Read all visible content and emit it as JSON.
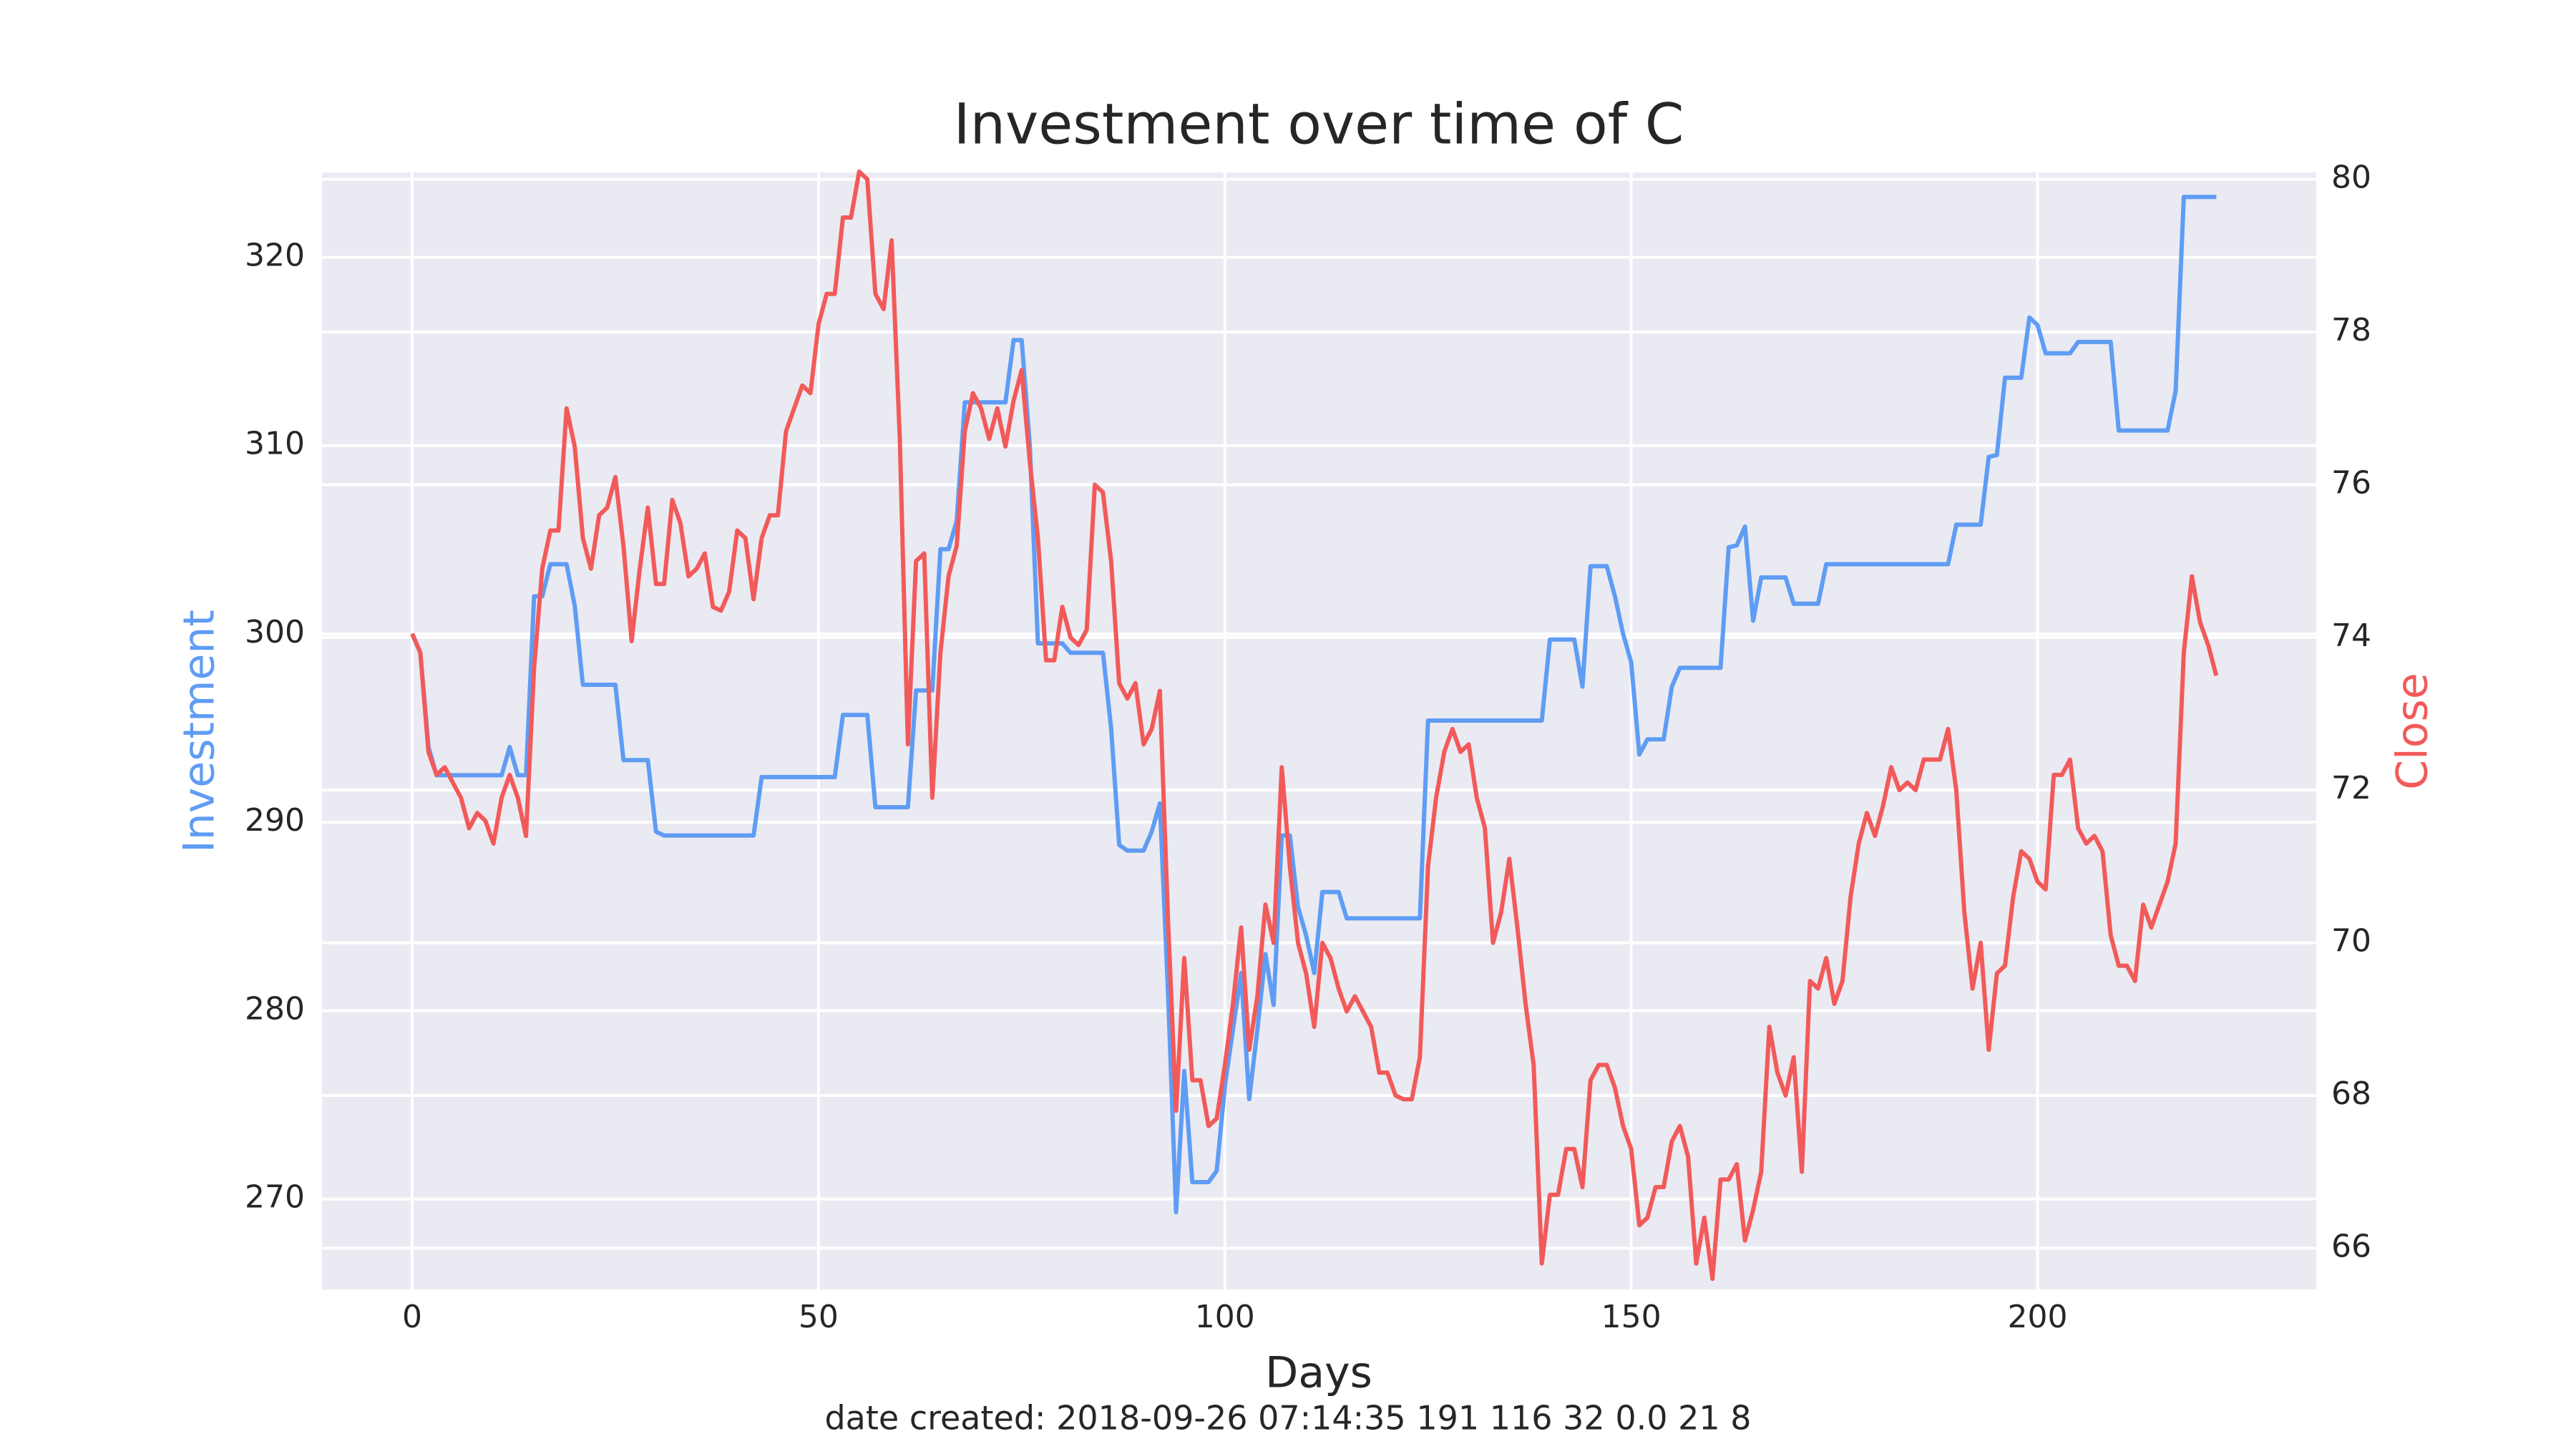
{
  "chart_data": {
    "type": "line",
    "title": "Investment over time of C",
    "xlabel": "Days",
    "ylabel": "Investment",
    "y2label": "Close",
    "caption": "date created: 2018-09-26 07:14:35 191 116 32 0.0 21 8",
    "grid": true,
    "xlim": [
      -11.1,
      234.3
    ],
    "xticks": [
      0,
      50,
      100,
      150,
      200
    ],
    "ylim": [
      265.2,
      324.5
    ],
    "yticks": [
      270,
      280,
      290,
      300,
      310,
      320
    ],
    "y2lim": [
      65.46,
      80.09
    ],
    "y2ticks": [
      66,
      68,
      70,
      72,
      74,
      76,
      78,
      80
    ],
    "x": [
      0,
      1,
      2,
      3,
      4,
      5,
      6,
      7,
      8,
      9,
      10,
      11,
      12,
      13,
      14,
      15,
      16,
      17,
      18,
      19,
      20,
      21,
      22,
      23,
      24,
      25,
      26,
      27,
      28,
      29,
      30,
      31,
      32,
      33,
      34,
      35,
      36,
      37,
      38,
      39,
      40,
      41,
      42,
      43,
      44,
      45,
      46,
      47,
      48,
      49,
      50,
      51,
      52,
      53,
      54,
      55,
      56,
      57,
      58,
      59,
      60,
      61,
      62,
      63,
      64,
      65,
      66,
      67,
      68,
      69,
      70,
      71,
      72,
      73,
      74,
      75,
      76,
      77,
      78,
      79,
      80,
      81,
      82,
      83,
      84,
      85,
      86,
      87,
      88,
      89,
      90,
      91,
      92,
      93,
      94,
      95,
      96,
      97,
      98,
      99,
      100,
      101,
      102,
      103,
      104,
      105,
      106,
      107,
      108,
      109,
      110,
      111,
      112,
      113,
      114,
      115,
      116,
      117,
      118,
      119,
      120,
      121,
      122,
      123,
      124,
      125,
      126,
      127,
      128,
      129,
      130,
      131,
      132,
      133,
      134,
      135,
      136,
      137,
      138,
      139,
      140,
      141,
      142,
      143,
      144,
      145,
      146,
      147,
      148,
      149,
      150,
      151,
      152,
      153,
      154,
      155,
      156,
      157,
      158,
      159,
      160,
      161,
      162,
      163,
      164,
      165,
      166,
      167,
      168,
      169,
      170,
      171,
      172,
      173,
      174,
      175,
      176,
      177,
      178,
      179,
      180,
      181,
      182,
      183,
      184,
      185,
      186,
      187,
      188,
      189,
      190,
      191,
      192,
      193,
      194,
      195,
      196,
      197,
      198,
      199,
      200,
      201,
      202,
      203,
      204,
      205,
      206,
      207,
      208,
      209,
      210,
      211,
      212,
      213,
      214,
      215,
      216,
      217,
      218,
      219,
      220,
      221,
      222
    ],
    "series": [
      {
        "name": "Investment",
        "color": "#5f9cf4",
        "axis": "y",
        "values": [
          300,
          299,
          294,
          292.5,
          292.5,
          292.5,
          292.5,
          292.5,
          292.5,
          292.5,
          292.5,
          292.5,
          294,
          292.5,
          292.5,
          302,
          302,
          303.7,
          303.7,
          303.7,
          301.5,
          297.3,
          297.3,
          297.3,
          297.3,
          297.3,
          293.3,
          293.3,
          293.3,
          293.3,
          289.5,
          289.3,
          289.3,
          289.3,
          289.3,
          289.3,
          289.3,
          289.3,
          289.3,
          289.3,
          289.3,
          289.3,
          289.3,
          292.4,
          292.4,
          292.4,
          292.4,
          292.4,
          292.4,
          292.4,
          292.4,
          292.4,
          292.4,
          295.7,
          295.7,
          295.7,
          295.7,
          290.8,
          290.8,
          290.8,
          290.8,
          290.8,
          297,
          297,
          297,
          304.5,
          304.5,
          306,
          312.3,
          312.3,
          312.3,
          312.3,
          312.3,
          312.3,
          315.6,
          315.6,
          310,
          299.5,
          299.5,
          299.5,
          299.5,
          299,
          299,
          299,
          299,
          299,
          295,
          288.8,
          288.5,
          288.5,
          288.5,
          289.5,
          291,
          281,
          269.3,
          276.8,
          270.9,
          270.9,
          270.9,
          271.5,
          276,
          279,
          282,
          275.3,
          279,
          283,
          280.3,
          289.3,
          289.3,
          285.5,
          284,
          282,
          286.3,
          286.3,
          286.3,
          284.9,
          284.9,
          284.9,
          284.9,
          284.9,
          284.9,
          284.9,
          284.9,
          284.9,
          284.9,
          295.4,
          295.4,
          295.4,
          295.4,
          295.4,
          295.4,
          295.4,
          295.4,
          295.4,
          295.4,
          295.4,
          295.4,
          295.4,
          295.4,
          295.4,
          299.7,
          299.7,
          299.7,
          299.7,
          297.2,
          303.6,
          303.6,
          303.6,
          302,
          300,
          298.5,
          293.6,
          294.4,
          294.4,
          294.4,
          297.2,
          298.2,
          298.2,
          298.2,
          298.2,
          298.2,
          298.2,
          304.6,
          304.7,
          305.7,
          300.7,
          303,
          303,
          303,
          303,
          301.6,
          301.6,
          301.6,
          301.6,
          303.7,
          303.7,
          303.7,
          303.7,
          303.7,
          303.7,
          303.7,
          303.7,
          303.7,
          303.7,
          303.7,
          303.7,
          303.7,
          303.7,
          303.7,
          303.7,
          305.8,
          305.8,
          305.8,
          305.8,
          309.4,
          309.5,
          313.6,
          313.6,
          313.6,
          316.8,
          316.4,
          314.9,
          314.9,
          314.9,
          314.9,
          315.5,
          315.5,
          315.5,
          315.5,
          315.5,
          310.8,
          310.8,
          310.8,
          310.8,
          310.8,
          310.8,
          310.8,
          312.9,
          323.2,
          323.2,
          323.2,
          323.2,
          323.2
        ]
      },
      {
        "name": "Close",
        "color": "#f25a5a",
        "axis": "y2",
        "values": [
          74.05,
          73.8,
          72.5,
          72.2,
          72.3,
          72.1,
          71.9,
          71.5,
          71.7,
          71.6,
          71.3,
          71.9,
          72.2,
          71.9,
          71.4,
          73.6,
          74.9,
          75.4,
          75.4,
          77.0,
          76.5,
          75.3,
          74.9,
          75.6,
          75.7,
          76.1,
          75.2,
          73.95,
          74.9,
          75.7,
          74.7,
          74.7,
          75.8,
          75.5,
          74.8,
          74.9,
          75.1,
          74.4,
          74.35,
          74.6,
          75.4,
          75.3,
          74.5,
          75.3,
          75.6,
          75.6,
          76.7,
          77.0,
          77.3,
          77.2,
          78.1,
          78.5,
          78.5,
          79.5,
          79.5,
          80.1,
          80.0,
          78.5,
          78.3,
          79.2,
          76.6,
          72.6,
          75.0,
          75.1,
          71.9,
          73.8,
          74.8,
          75.2,
          76.7,
          77.2,
          77.0,
          76.6,
          77.0,
          76.5,
          77.1,
          77.5,
          76.3,
          75.3,
          73.7,
          73.7,
          74.4,
          74.0,
          73.9,
          74.1,
          76.0,
          75.9,
          75.0,
          73.4,
          73.2,
          73.4,
          72.6,
          72.8,
          73.3,
          70.3,
          67.8,
          69.8,
          68.2,
          68.2,
          67.6,
          67.7,
          68.4,
          69.2,
          70.2,
          68.6,
          69.3,
          70.5,
          70.0,
          72.3,
          71.0,
          70.0,
          69.6,
          68.9,
          70.0,
          69.8,
          69.4,
          69.1,
          69.3,
          69.1,
          68.9,
          68.3,
          68.3,
          68.0,
          67.95,
          67.95,
          68.5,
          71.0,
          71.9,
          72.5,
          72.8,
          72.5,
          72.6,
          71.9,
          71.5,
          70.0,
          70.4,
          71.1,
          70.2,
          69.2,
          68.4,
          65.8,
          66.7,
          66.7,
          67.3,
          67.3,
          66.8,
          68.2,
          68.4,
          68.4,
          68.1,
          67.6,
          67.3,
          66.3,
          66.4,
          66.8,
          66.8,
          67.4,
          67.6,
          67.2,
          65.8,
          66.4,
          65.6,
          66.9,
          66.9,
          67.1,
          66.1,
          66.5,
          67.0,
          68.9,
          68.3,
          68.0,
          68.5,
          67.0,
          69.5,
          69.4,
          69.8,
          69.2,
          69.5,
          70.6,
          71.3,
          71.7,
          71.4,
          71.8,
          72.3,
          72.0,
          72.1,
          72.0,
          72.4,
          72.4,
          72.4,
          72.8,
          72.0,
          70.4,
          69.4,
          70.0,
          68.6,
          69.6,
          69.7,
          70.6,
          71.2,
          71.1,
          70.8,
          70.7,
          72.2,
          72.2,
          72.4,
          71.5,
          71.3,
          71.4,
          71.2,
          70.1,
          69.7,
          69.7,
          69.5,
          70.5,
          70.2,
          70.5,
          70.8,
          71.3,
          73.8,
          74.8,
          74.2,
          73.9,
          73.5
        ]
      }
    ]
  }
}
